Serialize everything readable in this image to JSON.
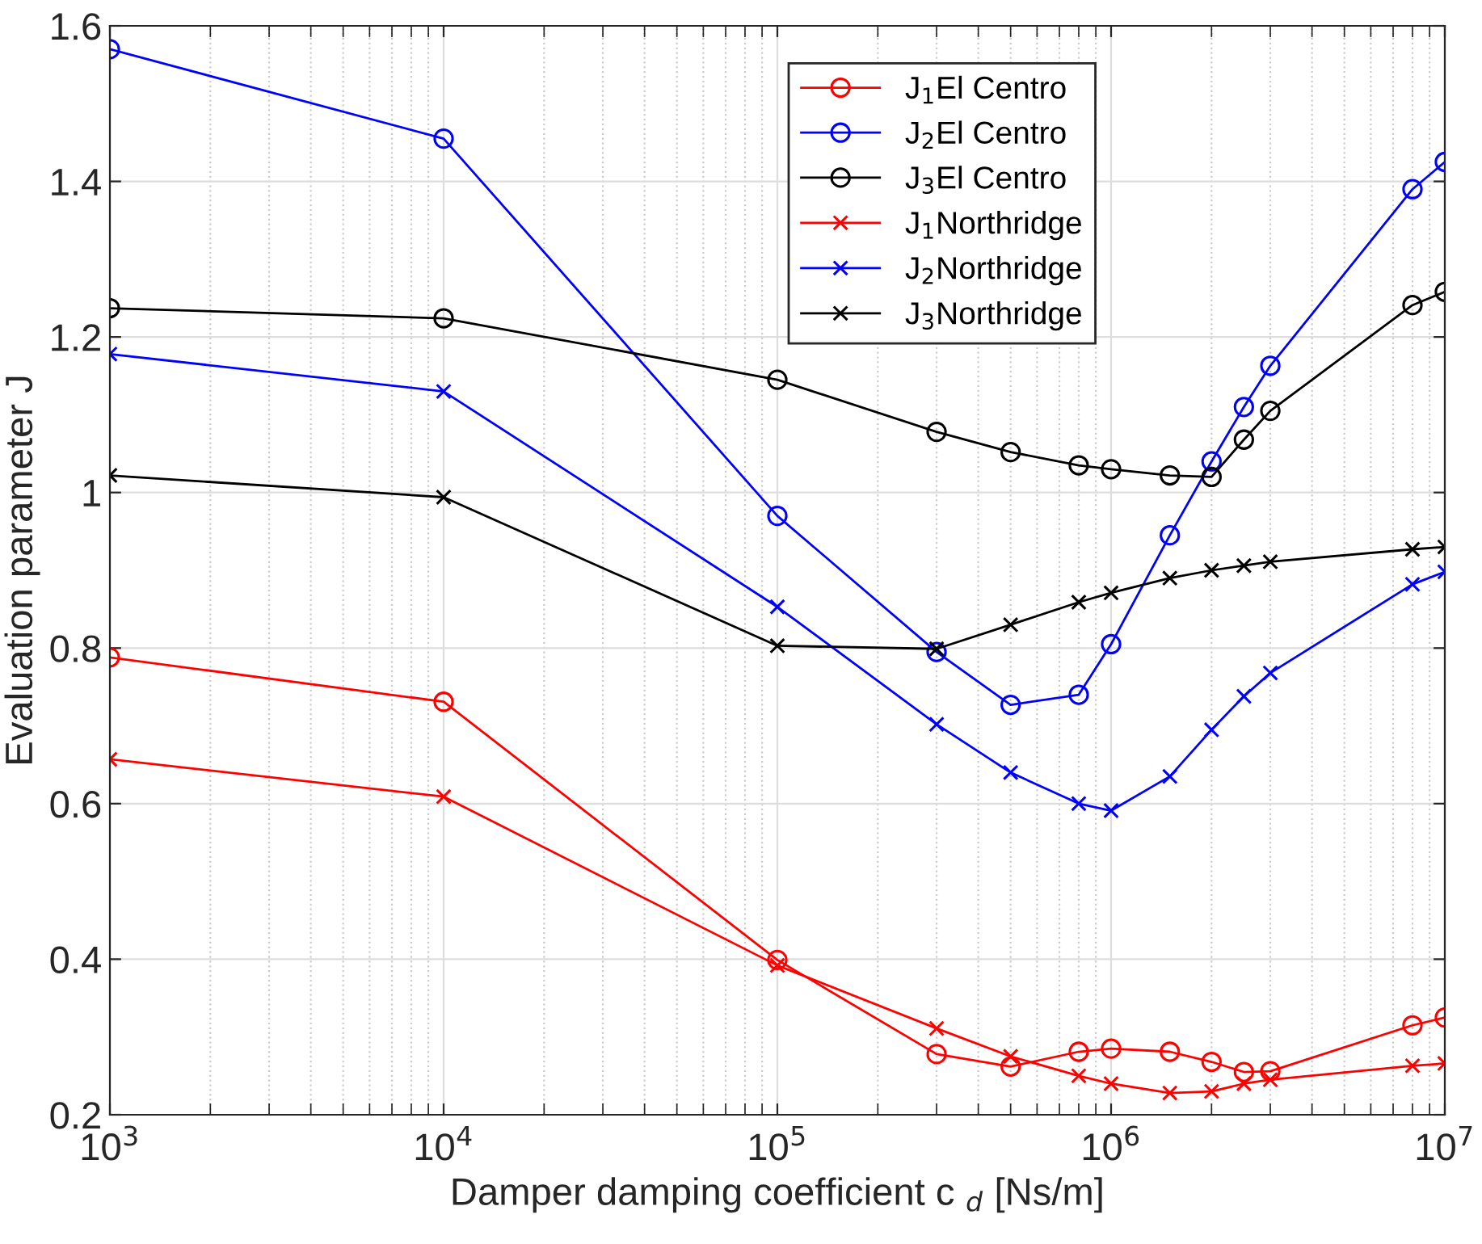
{
  "chart_data": {
    "type": "line",
    "xlabel": "Damper damping coefficient c $_{d}$ [Ns/m]",
    "ylabel": "Evaluation parameter J",
    "x": [
      1000,
      10000,
      100000,
      300000,
      500000,
      800000,
      1000000,
      1500000,
      2000000,
      2500000,
      3000000,
      8000000,
      10000000
    ],
    "series": [
      {
        "name": "J$_{1}$El Centro",
        "color": "#ff0000",
        "marker": "circle",
        "values": [
          0.788,
          0.731,
          0.399,
          0.278,
          0.262,
          0.281,
          0.285,
          0.281,
          0.268,
          0.255,
          0.256,
          0.315,
          0.325
        ]
      },
      {
        "name": "J$_{2}$El Centro",
        "color": "#0000ff",
        "marker": "circle",
        "values": [
          1.57,
          1.455,
          0.97,
          0.795,
          0.727,
          0.74,
          0.805,
          0.945,
          1.04,
          1.11,
          1.163,
          1.39,
          1.425
        ]
      },
      {
        "name": "J$_{3}$El Centro",
        "color": "#000000",
        "marker": "circle",
        "values": [
          1.237,
          1.224,
          1.145,
          1.078,
          1.052,
          1.035,
          1.03,
          1.022,
          1.02,
          1.068,
          1.105,
          1.241,
          1.258
        ]
      },
      {
        "name": "J$_{1}$Northridge",
        "color": "#ff0000",
        "marker": "cross",
        "values": [
          0.657,
          0.609,
          0.392,
          0.311,
          0.275,
          0.25,
          0.24,
          0.228,
          0.23,
          0.24,
          0.245,
          0.263,
          0.266
        ]
      },
      {
        "name": "J$_{2}$Northridge",
        "color": "#0000ff",
        "marker": "cross",
        "values": [
          1.178,
          1.13,
          0.853,
          0.702,
          0.64,
          0.6,
          0.591,
          0.635,
          0.695,
          0.738,
          0.768,
          0.882,
          0.898
        ]
      },
      {
        "name": "J$_{3}$Northridge",
        "color": "#000000",
        "marker": "cross",
        "values": [
          1.022,
          0.994,
          0.803,
          0.799,
          0.83,
          0.859,
          0.871,
          0.89,
          0.9,
          0.906,
          0.911,
          0.927,
          0.93
        ]
      }
    ],
    "log": "x",
    "xlim": [
      1000,
      10000000
    ],
    "xticks": [
      {
        "value": 1000,
        "label": "10$^{3}$"
      },
      {
        "value": 10000,
        "label": "10$^{4}$"
      },
      {
        "value": 100000,
        "label": "10$^{5}$"
      },
      {
        "value": 1000000,
        "label": "10$^{6}$"
      },
      {
        "value": 10000000,
        "label": "10$^{7}$"
      }
    ],
    "ylim": [
      0.2,
      1.6
    ],
    "yticks": [
      0.2,
      0.4,
      0.6,
      0.8,
      1,
      1.2,
      1.4,
      1.6
    ],
    "grid": true,
    "legend": "top right",
    "line_style": "solid"
  }
}
